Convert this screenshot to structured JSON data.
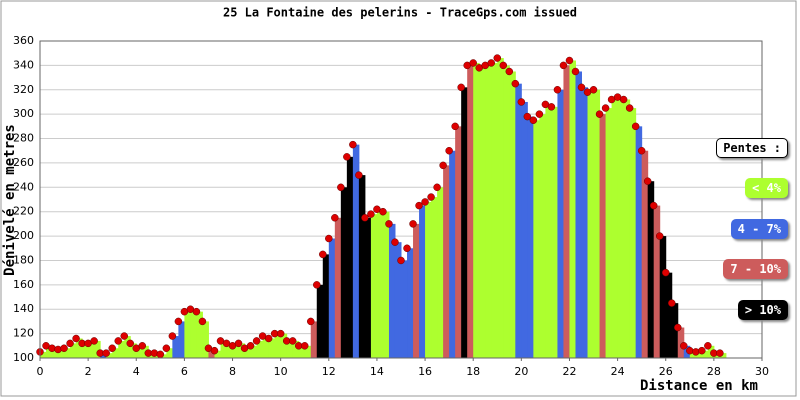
{
  "chart_data": {
    "type": "area",
    "title": "25 La Fontaine des pelerins - TraceGps.com issued",
    "x_label": "Distance en km",
    "y_label": "Dénivelé en metres",
    "xlim": [
      0,
      30
    ],
    "xticks": [
      0,
      2,
      4,
      6,
      8,
      10,
      12,
      14,
      16,
      18,
      20,
      22,
      24,
      26,
      28,
      30
    ],
    "ylim": [
      100,
      360
    ],
    "yticks": [
      100,
      120,
      140,
      160,
      180,
      200,
      220,
      240,
      260,
      280,
      300,
      320,
      340,
      360
    ],
    "grid": true,
    "point_color": "#dd0000",
    "legend_title": "Pentes :",
    "legend": [
      {
        "name": "< 4%",
        "color": "#adff2f"
      },
      {
        "name": "4 - 7%",
        "color": "#4169e1"
      },
      {
        "name": "7 - 10%",
        "color": "#cd5c5c"
      },
      {
        "name": "> 10%",
        "color": "#000000"
      }
    ],
    "x": [
      0,
      0.25,
      0.5,
      0.75,
      1,
      1.25,
      1.5,
      1.75,
      2,
      2.25,
      2.5,
      2.75,
      3,
      3.25,
      3.5,
      3.75,
      4,
      4.25,
      4.5,
      4.75,
      5,
      5.25,
      5.5,
      5.75,
      6,
      6.25,
      6.5,
      6.75,
      7,
      7.25,
      7.5,
      7.75,
      8,
      8.25,
      8.5,
      8.75,
      9,
      9.25,
      9.5,
      9.75,
      10,
      10.25,
      10.5,
      10.75,
      11,
      11.25,
      11.5,
      11.75,
      12,
      12.25,
      12.5,
      12.75,
      13,
      13.25,
      13.5,
      13.75,
      14,
      14.25,
      14.5,
      14.75,
      15,
      15.25,
      15.5,
      15.75,
      16,
      16.25,
      16.5,
      16.75,
      17,
      17.25,
      17.5,
      17.75,
      18,
      18.25,
      18.5,
      18.75,
      19,
      19.25,
      19.5,
      19.75,
      20,
      20.25,
      20.5,
      20.75,
      21,
      21.25,
      21.5,
      21.75,
      22,
      22.25,
      22.5,
      22.75,
      23,
      23.25,
      23.5,
      23.75,
      24,
      24.25,
      24.5,
      24.75,
      25,
      25.25,
      25.5,
      25.75,
      26,
      26.25,
      26.5,
      26.75,
      27,
      27.25,
      27.5,
      27.75,
      28,
      28.25
    ],
    "values": [
      105,
      110,
      108,
      107,
      108,
      112,
      116,
      112,
      112,
      114,
      104,
      104,
      108,
      114,
      118,
      112,
      108,
      110,
      104,
      104,
      103,
      108,
      118,
      130,
      138,
      140,
      138,
      130,
      108,
      106,
      114,
      112,
      110,
      112,
      108,
      110,
      114,
      118,
      116,
      120,
      120,
      114,
      114,
      110,
      110,
      130,
      160,
      185,
      198,
      215,
      240,
      265,
      275,
      250,
      215,
      218,
      222,
      220,
      210,
      195,
      180,
      190,
      210,
      225,
      228,
      232,
      240,
      258,
      270,
      290,
      322,
      340,
      342,
      338,
      340,
      342,
      346,
      340,
      335,
      325,
      310,
      298,
      295,
      300,
      308,
      306,
      320,
      340,
      344,
      335,
      322,
      318,
      320,
      300,
      305,
      312,
      314,
      312,
      305,
      290,
      270,
      245,
      225,
      200,
      170,
      145,
      125,
      110,
      106,
      105,
      106,
      110,
      104,
      104
    ],
    "colors": [
      "#adff2f",
      "#adff2f",
      "#adff2f",
      "#adff2f",
      "#adff2f",
      "#adff2f",
      "#adff2f",
      "#adff2f",
      "#adff2f",
      "#adff2f",
      "#4169e1",
      "#adff2f",
      "#adff2f",
      "#adff2f",
      "#adff2f",
      "#adff2f",
      "#adff2f",
      "#adff2f",
      "#adff2f",
      "#adff2f",
      "#adff2f",
      "#adff2f",
      "#4169e1",
      "#4169e1",
      "#adff2f",
      "#adff2f",
      "#adff2f",
      "#adff2f",
      "#cd5c5c",
      "#adff2f",
      "#adff2f",
      "#adff2f",
      "#adff2f",
      "#adff2f",
      "#adff2f",
      "#adff2f",
      "#adff2f",
      "#adff2f",
      "#adff2f",
      "#adff2f",
      "#adff2f",
      "#adff2f",
      "#adff2f",
      "#adff2f",
      "#adff2f",
      "#cd5c5c",
      "#000000",
      "#000000",
      "#4169e1",
      "#cd5c5c",
      "#000000",
      "#000000",
      "#4169e1",
      "#000000",
      "#000000",
      "#adff2f",
      "#adff2f",
      "#adff2f",
      "#4169e1",
      "#4169e1",
      "#4169e1",
      "#4169e1",
      "#cd5c5c",
      "#4169e1",
      "#adff2f",
      "#adff2f",
      "#adff2f",
      "#cd5c5c",
      "#4169e1",
      "#cd5c5c",
      "#000000",
      "#cd5c5c",
      "#adff2f",
      "#adff2f",
      "#adff2f",
      "#adff2f",
      "#adff2f",
      "#adff2f",
      "#adff2f",
      "#4169e1",
      "#4169e1",
      "#4169e1",
      "#adff2f",
      "#adff2f",
      "#adff2f",
      "#adff2f",
      "#4169e1",
      "#cd5c5c",
      "#adff2f",
      "#4169e1",
      "#4169e1",
      "#adff2f",
      "#adff2f",
      "#cd5c5c",
      "#adff2f",
      "#adff2f",
      "#adff2f",
      "#adff2f",
      "#adff2f",
      "#4169e1",
      "#cd5c5c",
      "#000000",
      "#cd5c5c",
      "#000000",
      "#000000",
      "#000000",
      "#cd5c5c",
      "#4169e1",
      "#adff2f",
      "#adff2f",
      "#adff2f",
      "#adff2f",
      "#adff2f",
      "#adff2f"
    ]
  }
}
